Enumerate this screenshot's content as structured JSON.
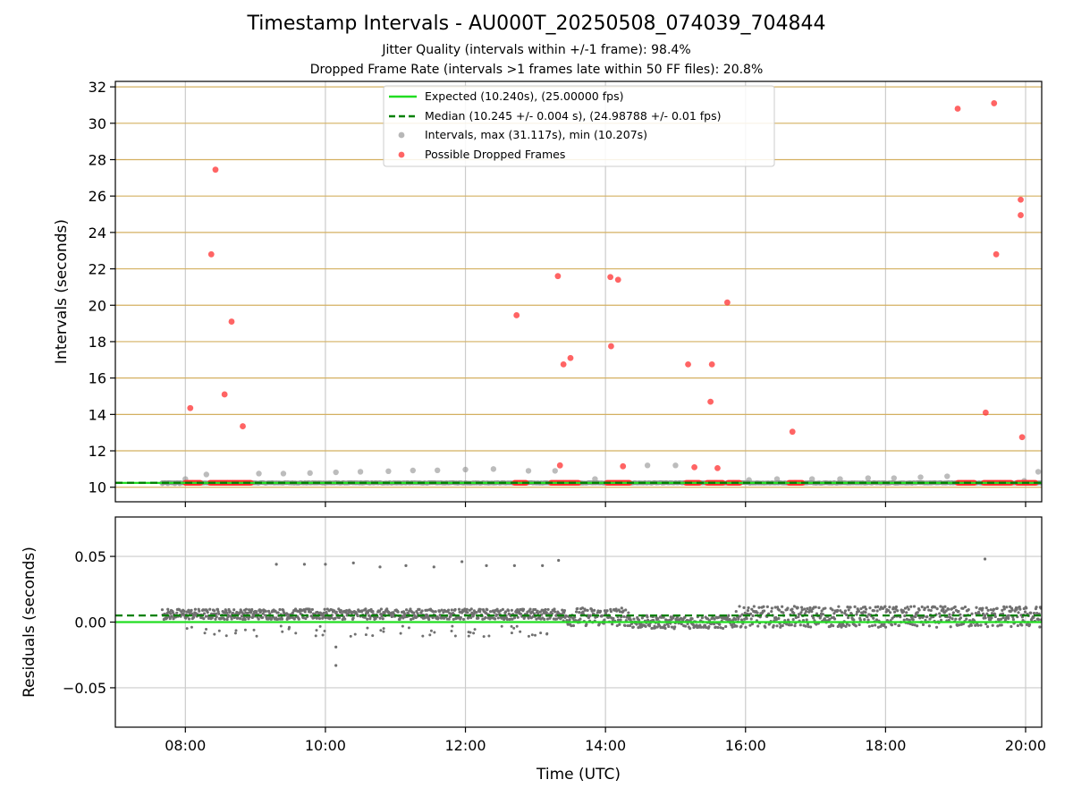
{
  "figure": {
    "title": "Timestamp Intervals - AU000T_20250508_074039_704844",
    "subtitle1": "Jitter Quality (intervals within +/-1 frame): 98.4%",
    "subtitle2": "Dropped Frame Rate (intervals >1 frames late within 50 FF files): 20.8%",
    "xlabel": "Time (UTC)"
  },
  "colors": {
    "expected": "#22dd22",
    "median": "#008000",
    "intervals": "#909090",
    "dropped": "#ff3030",
    "residuals": "#707070",
    "hgrid_top": "#d4b060",
    "grid": "#cccccc"
  },
  "chart_data": [
    {
      "type": "scatter",
      "title": "",
      "xlabel": "",
      "ylabel": "Intervals (seconds)",
      "xlim": [
        7.0,
        20.23
      ],
      "ylim": [
        9.2,
        32.3
      ],
      "xticks": [
        8,
        10,
        12,
        14,
        16,
        18,
        20
      ],
      "xtick_labels": [
        "08:00",
        "10:00",
        "12:00",
        "14:00",
        "16:00",
        "18:00",
        "20:00"
      ],
      "yticks": [
        10,
        12,
        14,
        16,
        18,
        20,
        22,
        24,
        26,
        28,
        30,
        32
      ],
      "ytick_labels": [
        "10",
        "12",
        "14",
        "16",
        "18",
        "20",
        "22",
        "24",
        "26",
        "28",
        "30",
        "32"
      ],
      "grid": "vertical gray, horizontal tan",
      "legend_position": "top-center",
      "legend": [
        "Expected (10.240s), (25.00000 fps)",
        "Median (10.245 +/- 0.004 s), (24.98788 +/- 0.01 fps)",
        "Intervals, max (31.117s), min (10.207s)",
        "Possible Dropped Frames"
      ],
      "expected_line": 10.24,
      "median_line": 10.245,
      "data_start": 7.67,
      "series": [
        {
          "name": "Intervals, max (31.117s), min (10.207s)",
          "x": [
            7.67,
            7.75,
            7.85,
            7.92,
            8.0,
            8.3,
            9.05,
            9.4,
            9.78,
            10.15,
            10.5,
            10.9,
            11.25,
            11.6,
            12.0,
            12.4,
            12.9,
            13.28,
            13.85,
            14.6,
            15.0,
            16.05,
            16.45,
            16.95,
            17.35,
            17.75,
            18.12,
            18.5,
            18.88,
            19.98,
            20.18
          ],
          "y": [
            10.22,
            10.22,
            10.22,
            10.22,
            10.45,
            10.7,
            10.75,
            10.75,
            10.78,
            10.82,
            10.85,
            10.88,
            10.92,
            10.93,
            10.97,
            11.0,
            10.9,
            10.9,
            10.45,
            11.2,
            11.2,
            10.4,
            10.45,
            10.45,
            10.45,
            10.5,
            10.5,
            10.55,
            10.6,
            10.35,
            10.85
          ]
        },
        {
          "name": "Possible Dropped Frames",
          "x": [
            8.07,
            8.37,
            8.43,
            8.56,
            8.66,
            8.82,
            12.73,
            13.32,
            13.35,
            13.4,
            13.5,
            14.07,
            14.08,
            14.18,
            14.25,
            15.18,
            15.27,
            15.52,
            15.5,
            15.6,
            15.74,
            16.67,
            19.03,
            19.43,
            19.55,
            19.58,
            19.93,
            19.93,
            19.95
          ],
          "y": [
            14.35,
            22.8,
            27.45,
            15.1,
            19.1,
            13.35,
            19.45,
            21.6,
            11.2,
            16.75,
            17.1,
            21.55,
            17.75,
            21.4,
            11.15,
            16.75,
            11.1,
            16.75,
            14.7,
            11.05,
            20.15,
            13.05,
            30.8,
            14.1,
            31.1,
            22.8,
            25.8,
            24.95,
            12.75
          ]
        }
      ],
      "dropped_clusters": [
        [
          8.0,
          8.22
        ],
        [
          8.35,
          8.95
        ],
        [
          12.7,
          12.88
        ],
        [
          13.22,
          13.62
        ],
        [
          14.02,
          14.35
        ],
        [
          15.15,
          15.35
        ],
        [
          15.45,
          15.68
        ],
        [
          15.75,
          15.92
        ],
        [
          16.62,
          16.82
        ],
        [
          19.03,
          19.28
        ],
        [
          19.4,
          19.8
        ],
        [
          19.88,
          20.15
        ]
      ]
    },
    {
      "type": "scatter",
      "title": "",
      "xlabel": "Time (UTC)",
      "ylabel": "Residuals (seconds)",
      "xlim": [
        7.0,
        20.23
      ],
      "ylim": [
        -0.08,
        0.08
      ],
      "xticks": [
        8,
        10,
        12,
        14,
        16,
        18,
        20
      ],
      "xtick_labels": [
        "08:00",
        "10:00",
        "12:00",
        "14:00",
        "16:00",
        "18:00",
        "20:00"
      ],
      "yticks": [
        0.05,
        0.0,
        -0.05
      ],
      "ytick_labels": [
        "0.05",
        "0.00",
        "−0.05"
      ],
      "grid": "on",
      "expected_line": 0.0,
      "median_line": 0.005,
      "outliers": {
        "x": [
          9.3,
          9.7,
          10.0,
          10.4,
          10.78,
          11.15,
          11.55,
          11.95,
          12.3,
          12.7,
          13.1,
          13.33,
          19.42,
          10.15,
          10.15
        ],
        "y": [
          0.044,
          0.044,
          0.044,
          0.045,
          0.042,
          0.043,
          0.042,
          0.046,
          0.043,
          0.043,
          0.043,
          0.047,
          0.048,
          -0.019,
          -0.033
        ]
      },
      "bands": [
        {
          "x": [
            7.67,
            13.4
          ],
          "center": 0.006,
          "spread": 0.004
        },
        {
          "x": [
            13.4,
            14.35
          ],
          "center": 0.004,
          "spread": 0.007
        },
        {
          "x": [
            14.35,
            15.85
          ],
          "center": 0.0,
          "spread": 0.005
        },
        {
          "x": [
            15.85,
            20.23
          ],
          "center": 0.004,
          "spread": 0.008
        }
      ]
    }
  ]
}
